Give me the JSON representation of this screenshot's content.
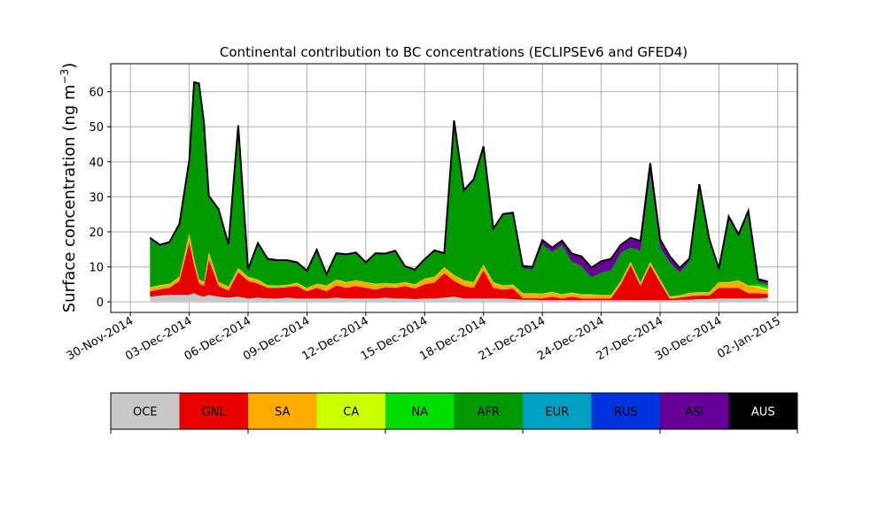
{
  "chart_data": {
    "type": "area",
    "stacked": true,
    "title": "Continental contribution to BC concentrations (ECLIPSEv6 and GFED4)",
    "ylabel": "Surface concentration (ng m",
    "ylabel_sup": "−3",
    "ylabel_close": ")",
    "xlabel": "",
    "grid": true,
    "ylim": [
      -3,
      68
    ],
    "yticks": [
      0,
      10,
      20,
      30,
      40,
      50,
      60
    ],
    "xlim": [
      "2014-11-29",
      "2015-01-03"
    ],
    "xticks": [
      "30-Nov-2014",
      "03-Dec-2014",
      "06-Dec-2014",
      "09-Dec-2014",
      "12-Dec-2014",
      "15-Dec-2014",
      "18-Dec-2014",
      "21-Dec-2014",
      "24-Dec-2014",
      "27-Dec-2014",
      "30-Dec-2014",
      "02-Jan-2015"
    ],
    "x": [
      "2014-12-01",
      "2014-12-01T12",
      "2014-12-02",
      "2014-12-02T12",
      "2014-12-03",
      "2014-12-03T06",
      "2014-12-03T12",
      "2014-12-03T18",
      "2014-12-04",
      "2014-12-04T12",
      "2014-12-05",
      "2014-12-05T12",
      "2014-12-06",
      "2014-12-06T12",
      "2014-12-07",
      "2014-12-07T12",
      "2014-12-08",
      "2014-12-08T12",
      "2014-12-09",
      "2014-12-09T12",
      "2014-12-10",
      "2014-12-10T12",
      "2014-12-11",
      "2014-12-11T12",
      "2014-12-12",
      "2014-12-12T12",
      "2014-12-13",
      "2014-12-13T12",
      "2014-12-14",
      "2014-12-14T12",
      "2014-12-15",
      "2014-12-15T12",
      "2014-12-16",
      "2014-12-16T12",
      "2014-12-17",
      "2014-12-17T12",
      "2014-12-18",
      "2014-12-18T12",
      "2014-12-19",
      "2014-12-19T12",
      "2014-12-20",
      "2014-12-20T12",
      "2014-12-21",
      "2014-12-21T12",
      "2014-12-22",
      "2014-12-22T12",
      "2014-12-23",
      "2014-12-23T12",
      "2014-12-24",
      "2014-12-24T12",
      "2014-12-25",
      "2014-12-25T12",
      "2014-12-26",
      "2014-12-26T12",
      "2014-12-27",
      "2014-12-27T12",
      "2014-12-28",
      "2014-12-28T12",
      "2014-12-29",
      "2014-12-29T12",
      "2014-12-30",
      "2014-12-30T12",
      "2014-12-31",
      "2014-12-31T12",
      "2015-01-01",
      "2015-01-01T12"
    ],
    "series": [
      {
        "name": "OCE",
        "color": "#c8c8c8",
        "values": [
          1.5,
          1.8,
          2.0,
          2.0,
          2.0,
          2.5,
          1.8,
          1.5,
          2.0,
          1.5,
          1.2,
          1.5,
          1.0,
          1.2,
          1.0,
          1.0,
          1.2,
          1.0,
          1.0,
          1.0,
          1.0,
          1.2,
          1.0,
          1.0,
          1.0,
          1.0,
          1.2,
          1.0,
          1.0,
          0.8,
          1.0,
          1.0,
          1.2,
          1.5,
          1.0,
          1.0,
          1.0,
          1.0,
          1.0,
          0.8,
          0.6,
          0.6,
          0.5,
          0.5,
          0.5,
          0.5,
          0.5,
          0.5,
          0.5,
          0.5,
          0.5,
          0.5,
          0.5,
          0.5,
          0.5,
          0.5,
          0.6,
          0.6,
          0.8,
          0.8,
          1.0,
          1.0,
          1.0,
          1.0,
          1.0,
          1.2
        ]
      },
      {
        "name": "GNL",
        "color": "#e60000",
        "values": [
          1.5,
          1.8,
          2.0,
          4.0,
          15.0,
          8.0,
          3.5,
          3.0,
          10.0,
          3.0,
          2.0,
          7.0,
          5.0,
          4.0,
          3.0,
          3.0,
          3.0,
          3.5,
          2.0,
          3.0,
          2.0,
          3.5,
          3.0,
          3.5,
          3.0,
          2.5,
          3.0,
          3.0,
          3.5,
          3.0,
          4.0,
          4.5,
          7.0,
          4.5,
          3.5,
          3.0,
          8.0,
          3.0,
          2.5,
          3.0,
          0.5,
          0.5,
          0.5,
          1.0,
          0.5,
          1.0,
          0.5,
          0.5,
          0.5,
          0.5,
          4.5,
          10.0,
          4.0,
          10.0,
          5.0,
          0.4,
          0.6,
          1.0,
          1.0,
          1.0,
          3.0,
          3.0,
          3.0,
          1.5,
          1.5,
          1.0
        ]
      },
      {
        "name": "SA",
        "color": "#ffaa00",
        "values": [
          1.0,
          1.0,
          1.0,
          1.0,
          2.5,
          1.5,
          1.0,
          1.0,
          2.0,
          1.0,
          1.0,
          1.0,
          1.0,
          1.0,
          0.6,
          0.5,
          0.5,
          0.8,
          0.8,
          1.0,
          1.5,
          1.5,
          1.5,
          1.5,
          1.5,
          1.5,
          1.0,
          1.0,
          1.0,
          1.0,
          1.5,
          1.5,
          1.5,
          1.5,
          1.5,
          1.5,
          1.5,
          1.5,
          1.0,
          1.0,
          1.2,
          1.2,
          1.2,
          1.2,
          1.0,
          1.0,
          1.0,
          1.0,
          0.8,
          0.8,
          0.8,
          0.8,
          0.8,
          0.8,
          0.8,
          0.5,
          0.5,
          0.8,
          0.8,
          0.8,
          1.5,
          1.5,
          2.0,
          2.0,
          1.5,
          1.0
        ]
      },
      {
        "name": "CA",
        "color": "#ccff00",
        "values": [
          0.1,
          0.1,
          0.1,
          0.1,
          0.1,
          0.1,
          0.1,
          0.1,
          0.1,
          0.1,
          0.1,
          0.1,
          0.1,
          0.1,
          0.1,
          0.1,
          0.1,
          0.1,
          0.1,
          0.1,
          0.1,
          0.1,
          0.1,
          0.1,
          0.1,
          0.1,
          0.1,
          0.1,
          0.1,
          0.1,
          0.1,
          0.1,
          0.1,
          0.1,
          0.1,
          0.1,
          0.1,
          0.1,
          0.1,
          0.1,
          0.1,
          0.1,
          0.1,
          0.1,
          0.1,
          0.1,
          0.1,
          0.1,
          0.1,
          0.1,
          0.1,
          0.1,
          0.1,
          0.1,
          0.1,
          0.1,
          0.1,
          0.1,
          0.1,
          0.1,
          0.1,
          0.1,
          0.1,
          0.1,
          0.5,
          0.5
        ]
      },
      {
        "name": "NA",
        "color": "#00dd00",
        "values": [
          0.1,
          0.1,
          0.1,
          0.1,
          0.1,
          0.1,
          0.1,
          0.1,
          0.1,
          0.1,
          0.1,
          0.1,
          0.1,
          0.1,
          0.1,
          0.1,
          0.1,
          0.1,
          0.1,
          0.1,
          0.1,
          0.1,
          0.1,
          0.1,
          0.1,
          0.1,
          0.1,
          0.1,
          0.1,
          0.1,
          0.1,
          0.1,
          0.1,
          0.1,
          0.1,
          0.1,
          0.1,
          0.1,
          0.1,
          0.1,
          0.1,
          0.1,
          0.1,
          0.1,
          0.1,
          0.1,
          0.1,
          0.1,
          0.1,
          0.1,
          0.1,
          0.1,
          0.1,
          0.1,
          0.1,
          0.1,
          0.1,
          0.1,
          0.1,
          0.1,
          0.1,
          0.1,
          0.1,
          0.1,
          0.5,
          0.8
        ]
      },
      {
        "name": "AFR",
        "color": "#009900",
        "values": [
          13.6,
          11.0,
          11.4,
          14.6,
          20.2,
          50.0,
          55.4,
          45.0,
          15.6,
          20.2,
          11.5,
          40.2,
          1.7,
          10.0,
          7.1,
          6.8,
          6.6,
          5.4,
          4.5,
          9.3,
          2.8,
          7.1,
          7.5,
          7.5,
          5.2,
          8.3,
          8.0,
          9.0,
          4.1,
          3.8,
          5.1,
          7.1,
          3.6,
          43.2,
          25.0,
          28.6,
          33.0,
          14.7,
          19.9,
          20.0,
          7.0,
          6.7,
          14.0,
          11.3,
          14.0,
          8.8,
          8.0,
          4.8,
          6.3,
          7.0,
          8.0,
          4.0,
          9.1,
          24.6,
          9.0,
          9.5,
          6.5,
          9.0,
          30.0,
          14.5,
          3.0,
          17.9,
          12.3,
          20.5,
          0.7,
          0.5
        ]
      },
      {
        "name": "EUR",
        "color": "#00a0c0",
        "values": [
          0.0,
          0.0,
          0.0,
          0.0,
          0.0,
          0.0,
          0.0,
          0.0,
          0.0,
          0.0,
          0.0,
          0.0,
          0.0,
          0.0,
          0.0,
          0.0,
          0.0,
          0.0,
          0.0,
          0.0,
          0.0,
          0.0,
          0.0,
          0.0,
          0.0,
          0.0,
          0.0,
          0.0,
          0.0,
          0.0,
          0.0,
          0.0,
          0.0,
          0.0,
          0.0,
          0.0,
          0.0,
          0.0,
          0.0,
          0.0,
          0.0,
          0.0,
          0.0,
          0.0,
          0.0,
          0.0,
          0.0,
          0.0,
          0.0,
          0.0,
          0.0,
          0.0,
          0.0,
          0.0,
          0.0,
          0.0,
          0.0,
          0.0,
          0.0,
          0.0,
          0.0,
          0.0,
          0.0,
          0.0,
          0.0,
          0.0
        ]
      },
      {
        "name": "RUS",
        "color": "#0033dd",
        "values": [
          0.1,
          0.1,
          0.1,
          0.1,
          0.1,
          0.1,
          0.1,
          0.1,
          0.1,
          0.1,
          0.1,
          0.1,
          0.0,
          0.0,
          0.0,
          0.0,
          0.0,
          0.0,
          0.0,
          0.0,
          0.0,
          0.0,
          0.0,
          0.0,
          0.0,
          0.0,
          0.0,
          0.0,
          0.0,
          0.0,
          0.0,
          0.0,
          0.0,
          0.3,
          0.2,
          0.2,
          0.2,
          0.1,
          0.1,
          0.1,
          0.0,
          0.0,
          0.0,
          0.0,
          0.0,
          0.0,
          0.0,
          0.0,
          0.0,
          0.0,
          0.0,
          0.0,
          0.0,
          0.2,
          0.1,
          0.1,
          0.0,
          0.0,
          0.0,
          0.0,
          0.0,
          0.0,
          0.0,
          0.0,
          0.0,
          0.0
        ]
      },
      {
        "name": "ASI",
        "color": "#660099",
        "values": [
          0.1,
          0.1,
          0.1,
          0.1,
          0.1,
          0.1,
          0.1,
          0.1,
          0.1,
          0.1,
          0.1,
          0.1,
          0.1,
          0.1,
          0.1,
          0.1,
          0.1,
          0.1,
          0.1,
          0.1,
          0.1,
          0.1,
          0.1,
          0.1,
          0.1,
          0.1,
          0.1,
          0.1,
          0.1,
          0.1,
          0.1,
          0.1,
          0.1,
          0.3,
          0.2,
          0.2,
          0.2,
          0.1,
          0.1,
          0.1,
          0.5,
          0.5,
          1.0,
          1.0,
          1.0,
          2.0,
          2.5,
          2.5,
          3.0,
          3.0,
          2.0,
          2.5,
          2.5,
          3.0,
          2.0,
          1.5,
          1.0,
          0.5,
          0.5,
          0.5,
          0.5,
          0.5,
          0.5,
          0.5,
          0.5,
          0.5
        ]
      },
      {
        "name": "AUS",
        "color": "#000000",
        "values": [
          0.3,
          0.3,
          0.3,
          0.3,
          0.3,
          0.3,
          0.3,
          0.3,
          0.3,
          0.3,
          0.3,
          0.3,
          0.3,
          0.3,
          0.3,
          0.3,
          0.3,
          0.3,
          0.3,
          0.3,
          0.3,
          0.3,
          0.3,
          0.3,
          0.3,
          0.3,
          0.3,
          0.3,
          0.3,
          0.3,
          0.3,
          0.3,
          0.3,
          0.3,
          0.3,
          0.3,
          0.3,
          0.3,
          0.3,
          0.3,
          0.3,
          0.3,
          0.3,
          0.3,
          0.3,
          0.3,
          0.3,
          0.3,
          0.3,
          0.3,
          0.3,
          0.3,
          0.3,
          0.3,
          0.3,
          0.3,
          0.3,
          0.3,
          0.3,
          0.3,
          0.3,
          0.3,
          0.3,
          0.3,
          0.3,
          0.3
        ]
      }
    ],
    "legend_placement": "bottom"
  }
}
